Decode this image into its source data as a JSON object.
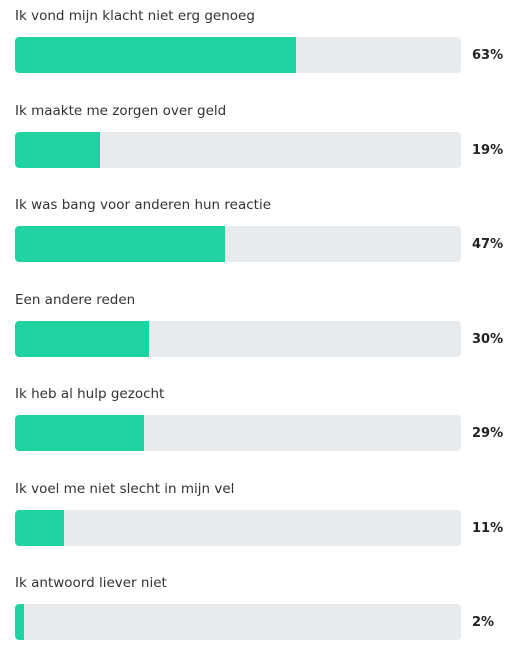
{
  "chart_data": {
    "type": "bar",
    "orientation": "horizontal",
    "categories": [
      "Ik vond mijn klacht niet erg genoeg",
      "Ik maakte me zorgen over geld",
      "Ik was bang voor anderen hun reactie",
      "Een andere reden",
      "Ik heb al hulp gezocht",
      "Ik voel me niet slecht in mijn vel",
      "Ik antwoord liever niet"
    ],
    "values": [
      63,
      19,
      47,
      30,
      29,
      11,
      2
    ],
    "value_labels": [
      "63%",
      "19%",
      "47%",
      "30%",
      "29%",
      "11%",
      "2%"
    ],
    "xlim": [
      0,
      100
    ],
    "grid": false,
    "legend": "none",
    "colors": {
      "bar": "#1ed3a1",
      "track": "#e7ebee",
      "label_text": "#333333",
      "value_text": "#222222"
    }
  }
}
